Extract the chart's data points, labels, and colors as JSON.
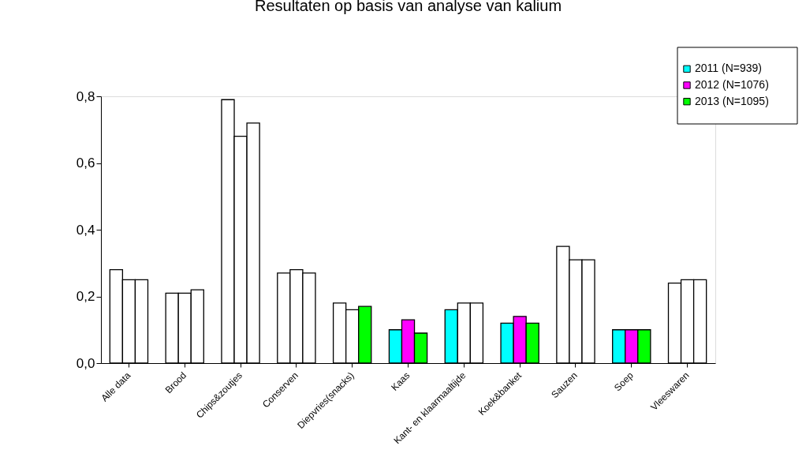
{
  "chart_data": {
    "type": "bar",
    "title": "Resultaten op basis van analyse van kalium",
    "categories": [
      "Alle data",
      "Brood",
      "Chips&zoutjes",
      "Conserven",
      "Diepvries(snacks)",
      "Kaas",
      "Kant- en klaarmaaltijde",
      "Koek&banket",
      "Sauzen",
      "Soep",
      "Vleeswaren"
    ],
    "series": [
      {
        "name": "2011 (N=939)",
        "color": "#00ffff",
        "values": [
          0.28,
          0.21,
          0.79,
          0.27,
          0.18,
          0.1,
          0.16,
          0.12,
          0.35,
          0.1,
          0.24
        ],
        "colors": [
          "#ffffff",
          "#ffffff",
          "#ffffff",
          "#ffffff",
          "#ffffff",
          "#00ffff",
          "#00ffff",
          "#00ffff",
          "#ffffff",
          "#00ffff",
          "#ffffff"
        ]
      },
      {
        "name": "2012 (N=1076)",
        "color": "#ff00ff",
        "values": [
          0.25,
          0.21,
          0.68,
          0.28,
          0.16,
          0.13,
          0.18,
          0.14,
          0.31,
          0.1,
          0.25
        ],
        "colors": [
          "#ffffff",
          "#ffffff",
          "#ffffff",
          "#ffffff",
          "#ffffff",
          "#ff00ff",
          "#ffffff",
          "#ff00ff",
          "#ffffff",
          "#ff00ff",
          "#ffffff"
        ]
      },
      {
        "name": "2013 (N=1095)",
        "color": "#00ff00",
        "values": [
          0.25,
          0.22,
          0.72,
          0.27,
          0.17,
          0.09,
          0.18,
          0.12,
          0.31,
          0.1,
          0.25
        ],
        "colors": [
          "#ffffff",
          "#ffffff",
          "#ffffff",
          "#ffffff",
          "#00ff00",
          "#00ff00",
          "#ffffff",
          "#00ff00",
          "#ffffff",
          "#00ff00",
          "#ffffff"
        ]
      }
    ],
    "ylim": [
      0,
      0.8
    ],
    "yticks": [
      {
        "value": 0,
        "label": "0,0"
      },
      {
        "value": 0.2,
        "label": "0,2"
      },
      {
        "value": 0.4,
        "label": "0,4"
      },
      {
        "value": 0.6,
        "label": "0,6"
      },
      {
        "value": 0.8,
        "label": "0,8"
      }
    ],
    "grid": false,
    "legend": "top right"
  }
}
